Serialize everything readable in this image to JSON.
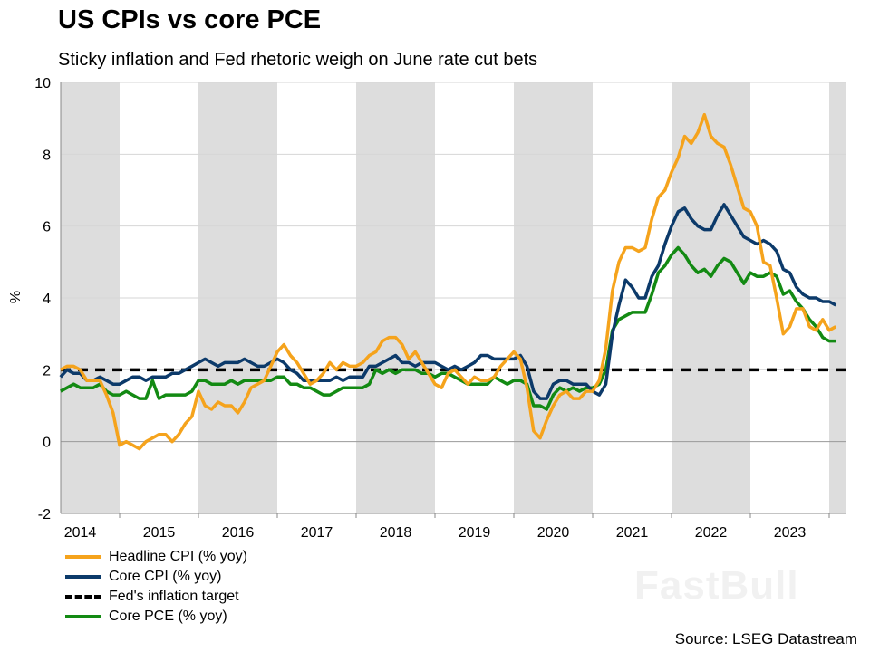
{
  "chart_data": {
    "type": "line",
    "title": "US CPIs vs core PCE",
    "subtitle": "Sticky inflation and Fed rhetoric weigh on June rate cut bets",
    "ylabel": "%",
    "xlabel": "",
    "ylim": [
      -2,
      10
    ],
    "yticks": [
      -2,
      0,
      2,
      4,
      6,
      8,
      10
    ],
    "xlim": [
      "2014-04",
      "2024-02"
    ],
    "frequency": "monthly",
    "xticks": [
      "2014",
      "2015",
      "2016",
      "2017",
      "2018",
      "2019",
      "2020",
      "2021",
      "2022",
      "2023"
    ],
    "shaded_years": [
      2014,
      2016,
      2018,
      2020,
      2022,
      2024
    ],
    "grid": "horizontal",
    "legend_position": "bottom-left",
    "source": "Source: LSEG Datastream",
    "watermark": "FastBull",
    "colors": {
      "headline": "#f5a31c",
      "core_cpi": "#0c3a6a",
      "target": "#000000",
      "core_pce": "#138a13",
      "shade": "#dddddd"
    },
    "series": [
      {
        "name": "Headline CPI (% yoy)",
        "key": "headline",
        "values": [
          2.0,
          2.1,
          2.1,
          2.0,
          1.7,
          1.7,
          1.7,
          1.3,
          0.8,
          -0.1,
          0.0,
          -0.1,
          -0.2,
          0.0,
          0.1,
          0.2,
          0.2,
          0.0,
          0.2,
          0.5,
          0.7,
          1.4,
          1.0,
          0.9,
          1.1,
          1.0,
          1.0,
          0.8,
          1.1,
          1.5,
          1.6,
          1.7,
          2.1,
          2.5,
          2.7,
          2.4,
          2.2,
          1.9,
          1.6,
          1.7,
          1.9,
          2.2,
          2.0,
          2.2,
          2.1,
          2.1,
          2.2,
          2.4,
          2.5,
          2.8,
          2.9,
          2.9,
          2.7,
          2.3,
          2.5,
          2.2,
          1.9,
          1.6,
          1.5,
          1.9,
          2.0,
          1.8,
          1.6,
          1.8,
          1.7,
          1.7,
          1.8,
          2.1,
          2.3,
          2.5,
          2.3,
          1.5,
          0.3,
          0.1,
          0.6,
          1.0,
          1.3,
          1.4,
          1.2,
          1.2,
          1.4,
          1.4,
          1.7,
          2.6,
          4.2,
          5.0,
          5.4,
          5.4,
          5.3,
          5.4,
          6.2,
          6.8,
          7.0,
          7.5,
          7.9,
          8.5,
          8.3,
          8.6,
          9.1,
          8.5,
          8.3,
          8.2,
          7.7,
          7.1,
          6.5,
          6.4,
          6.0,
          5.0,
          4.9,
          4.0,
          3.0,
          3.2,
          3.7,
          3.7,
          3.2,
          3.1,
          3.4,
          3.1,
          3.2
        ]
      },
      {
        "name": "Core CPI (% yoy)",
        "key": "core_cpi",
        "values": [
          1.8,
          2.0,
          1.9,
          1.9,
          1.7,
          1.7,
          1.8,
          1.7,
          1.6,
          1.6,
          1.7,
          1.8,
          1.8,
          1.7,
          1.8,
          1.8,
          1.8,
          1.9,
          1.9,
          2.0,
          2.1,
          2.2,
          2.3,
          2.2,
          2.1,
          2.2,
          2.2,
          2.2,
          2.3,
          2.2,
          2.1,
          2.1,
          2.2,
          2.3,
          2.2,
          2.0,
          1.9,
          1.7,
          1.7,
          1.7,
          1.7,
          1.7,
          1.8,
          1.7,
          1.8,
          1.8,
          1.8,
          2.1,
          2.1,
          2.2,
          2.3,
          2.4,
          2.2,
          2.2,
          2.1,
          2.2,
          2.2,
          2.2,
          2.1,
          2.0,
          2.1,
          2.0,
          2.1,
          2.2,
          2.4,
          2.4,
          2.3,
          2.3,
          2.3,
          2.3,
          2.4,
          2.1,
          1.4,
          1.2,
          1.2,
          1.6,
          1.7,
          1.7,
          1.6,
          1.6,
          1.6,
          1.4,
          1.3,
          1.6,
          3.0,
          3.8,
          4.5,
          4.3,
          4.0,
          4.0,
          4.6,
          4.9,
          5.5,
          6.0,
          6.4,
          6.5,
          6.2,
          6.0,
          5.9,
          5.9,
          6.3,
          6.6,
          6.3,
          6.0,
          5.7,
          5.6,
          5.5,
          5.6,
          5.5,
          5.3,
          4.8,
          4.7,
          4.3,
          4.1,
          4.0,
          4.0,
          3.9,
          3.9,
          3.8
        ]
      },
      {
        "name": "Fed's inflation target",
        "key": "target",
        "constant": 2
      },
      {
        "name": "Core PCE (% yoy)",
        "key": "core_pce",
        "values": [
          1.4,
          1.5,
          1.6,
          1.5,
          1.5,
          1.5,
          1.6,
          1.4,
          1.3,
          1.3,
          1.4,
          1.3,
          1.2,
          1.2,
          1.7,
          1.2,
          1.3,
          1.3,
          1.3,
          1.3,
          1.4,
          1.7,
          1.7,
          1.6,
          1.6,
          1.6,
          1.7,
          1.6,
          1.7,
          1.7,
          1.7,
          1.7,
          1.7,
          1.8,
          1.8,
          1.6,
          1.6,
          1.5,
          1.5,
          1.4,
          1.3,
          1.3,
          1.4,
          1.5,
          1.5,
          1.5,
          1.5,
          1.6,
          2.0,
          1.9,
          2.0,
          1.9,
          2.0,
          2.0,
          2.0,
          1.9,
          1.9,
          1.8,
          1.9,
          1.9,
          1.8,
          1.7,
          1.6,
          1.6,
          1.6,
          1.6,
          1.8,
          1.7,
          1.6,
          1.7,
          1.7,
          1.6,
          1.0,
          1.0,
          0.9,
          1.3,
          1.5,
          1.4,
          1.5,
          1.4,
          1.5,
          1.5,
          1.6,
          2.0,
          3.1,
          3.4,
          3.5,
          3.6,
          3.6,
          3.6,
          4.1,
          4.7,
          4.9,
          5.2,
          5.4,
          5.2,
          4.9,
          4.7,
          4.8,
          4.6,
          4.9,
          5.1,
          5.0,
          4.7,
          4.4,
          4.7,
          4.6,
          4.6,
          4.7,
          4.6,
          4.1,
          4.2,
          3.9,
          3.7,
          3.4,
          3.2,
          2.9,
          2.8,
          2.8
        ]
      }
    ]
  },
  "legend_order": [
    0,
    1,
    2,
    3
  ]
}
